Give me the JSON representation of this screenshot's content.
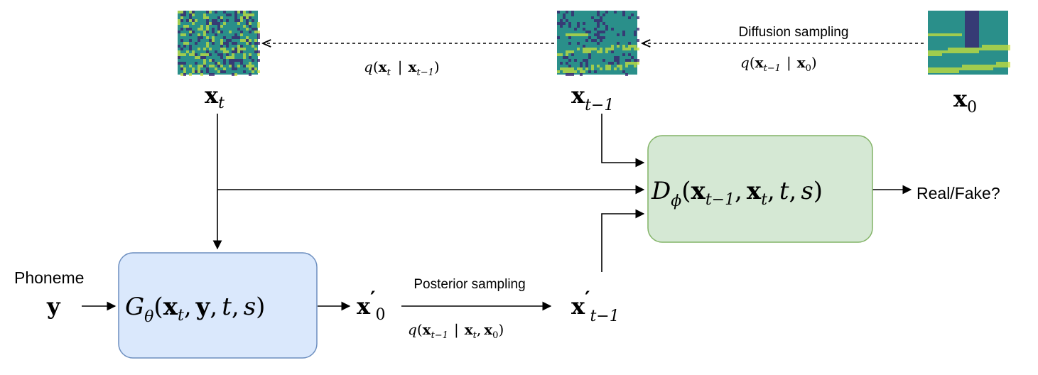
{
  "colors": {
    "generator_fill": "#dae8fc",
    "generator_stroke": "#6c8ebf",
    "discriminator_fill": "#d5e8d4",
    "discriminator_stroke": "#82b366",
    "spectrogram_dark": "#3b1f6e",
    "spectrogram_mid": "#2a8f8a",
    "spectrogram_light": "#c8e03a"
  },
  "labels": {
    "diffusion_sampling": "Diffusion sampling",
    "posterior_sampling": "Posterior sampling",
    "phoneme": "Phoneme",
    "real_fake": "Real/Fake?"
  },
  "math": {
    "x": "x",
    "y": "y",
    "t": "t",
    "t_minus_1": "t−1",
    "zero": "0",
    "prime": "′",
    "q": "q",
    "bar": "|",
    "comma": ",",
    "lparen": "(",
    "rparen": ")",
    "G": "G",
    "theta": "θ",
    "D": "D",
    "phi": "ϕ",
    "s": "s"
  },
  "spectrograms": [
    {
      "id": "x_t",
      "noise_level": 0.85
    },
    {
      "id": "x_t-1",
      "noise_level": 0.45
    },
    {
      "id": "x_0",
      "noise_level": 0.05
    }
  ]
}
